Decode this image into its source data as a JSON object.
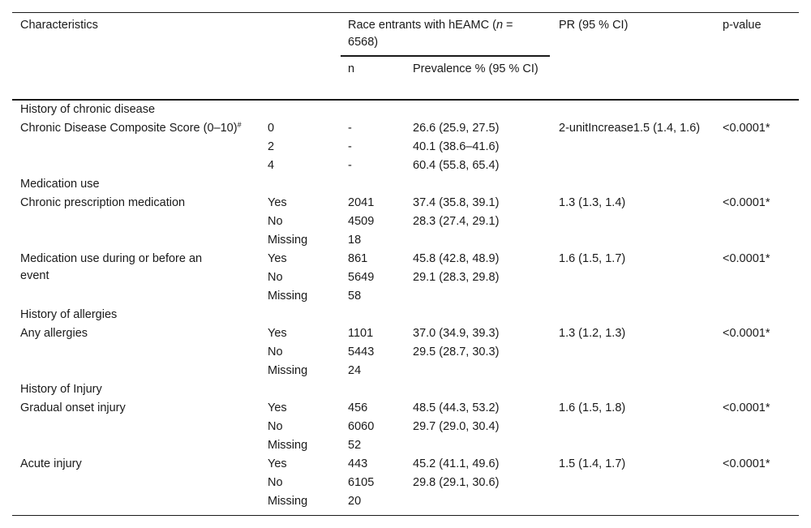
{
  "header": {
    "characteristics": "Characteristics",
    "race_entrants_prefix": "Race entrants with hEAMC (",
    "race_entrants_n": "n",
    "race_entrants_suffix": " = 6568)",
    "pr": "PR (95 % CI)",
    "pvalue": "p-value",
    "sub_n": "n",
    "sub_prevalence": "Prevalence % (95 % CI)"
  },
  "sections": {
    "chronic": "History of chronic disease",
    "medication": "Medication use",
    "allergies": "History of allergies",
    "injury": "History of Injury"
  },
  "rows": {
    "ccs": {
      "label": "Chronic Disease Composite Score (0–10)",
      "label_sup": "#",
      "levels": [
        "0",
        "2",
        "4"
      ],
      "n": [
        "-",
        "-",
        "-"
      ],
      "prev": [
        "26.6 (25.9, 27.5)",
        "40.1 (38.6–41.6)",
        "60.4 (55.8, 65.4)"
      ],
      "pr": "2-unitIncrease1.5 (1.4, 1.6)",
      "p": "<0.0001*"
    },
    "chronic_med": {
      "label": "Chronic prescription medication",
      "levels": [
        "Yes",
        "No",
        "Missing"
      ],
      "n": [
        "2041",
        "4509",
        "18"
      ],
      "prev": [
        "37.4 (35.8, 39.1)",
        "28.3 (27.4, 29.1)",
        ""
      ],
      "pr": "1.3 (1.3, 1.4)",
      "p": "<0.0001*"
    },
    "event_med": {
      "label": "Medication use during or before an event",
      "levels": [
        "Yes",
        "No",
        "Missing"
      ],
      "n": [
        "861",
        "5649",
        "58"
      ],
      "prev": [
        "45.8 (42.8, 48.9)",
        "29.1 (28.3, 29.8)",
        ""
      ],
      "pr": "1.6 (1.5, 1.7)",
      "p": "<0.0001*"
    },
    "allergies": {
      "label": "Any allergies",
      "levels": [
        "Yes",
        "No",
        "Missing"
      ],
      "n": [
        "1101",
        "5443",
        "24"
      ],
      "prev": [
        "37.0 (34.9, 39.3)",
        "29.5 (28.7, 30.3)",
        ""
      ],
      "pr": "1.3 (1.2, 1.3)",
      "p": "<0.0001*"
    },
    "gradual": {
      "label": "Gradual onset injury",
      "levels": [
        "Yes",
        "No",
        "Missing"
      ],
      "n": [
        "456",
        "6060",
        "52"
      ],
      "prev": [
        "48.5 (44.3, 53.2)",
        "29.7 (29.0, 30.4)",
        ""
      ],
      "pr": "1.6 (1.5, 1.8)",
      "p": "<0.0001*"
    },
    "acute": {
      "label": "Acute injury",
      "levels": [
        "Yes",
        "No",
        "Missing"
      ],
      "n": [
        "443",
        "6105",
        "20"
      ],
      "prev": [
        "45.2 (41.1, 49.6)",
        "29.8 (29.1, 30.6)",
        ""
      ],
      "pr": "1.5 (1.4, 1.7)",
      "p": "<0.0001*"
    }
  }
}
